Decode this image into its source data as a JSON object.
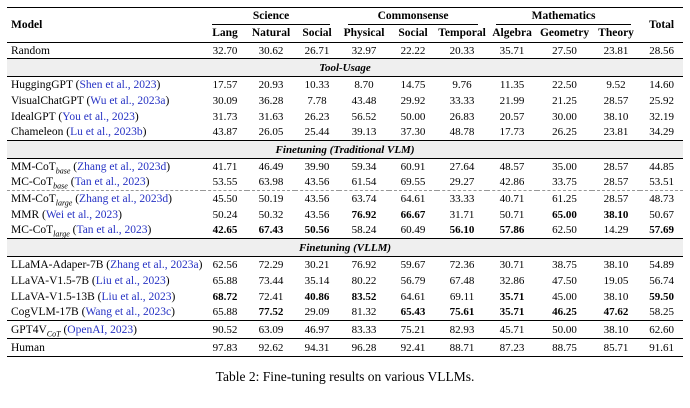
{
  "colors": {
    "citation_link": "#2733c4",
    "section_band_bg": "#efefef"
  },
  "caption": "Table 2: Fine-tuning results on various VLLMs.",
  "table": {
    "header": {
      "model_label": "Model",
      "total_label": "Total",
      "groups": [
        {
          "label": "Science",
          "cols": [
            "Lang",
            "Natural",
            "Social"
          ]
        },
        {
          "label": "Commonsense",
          "cols": [
            "Physical",
            "Social",
            "Temporal"
          ]
        },
        {
          "label": "Mathematics",
          "cols": [
            "Algebra",
            "Geometry",
            "Theory"
          ]
        }
      ]
    },
    "sections": [
      {
        "kind": "rows",
        "rows": [
          {
            "model": "Random",
            "sub": "",
            "cite": "",
            "values": [
              "32.70",
              "30.62",
              "26.71",
              "32.97",
              "22.22",
              "20.33",
              "35.71",
              "27.50",
              "23.81",
              "28.56"
            ],
            "bold": [
              0,
              0,
              0,
              0,
              0,
              0,
              0,
              0,
              0,
              0
            ]
          }
        ]
      },
      {
        "kind": "band",
        "label": "Tool-Usage"
      },
      {
        "kind": "rows",
        "rows": [
          {
            "model": "HuggingGPT",
            "sub": "",
            "cite": "Shen et al., 2023",
            "values": [
              "17.57",
              "20.93",
              "10.33",
              "8.70",
              "14.75",
              "9.76",
              "11.35",
              "22.50",
              "9.52",
              "14.60"
            ],
            "bold": [
              0,
              0,
              0,
              0,
              0,
              0,
              0,
              0,
              0,
              0
            ]
          },
          {
            "model": "VisualChatGPT",
            "sub": "",
            "cite": "Wu et al., 2023a",
            "values": [
              "30.09",
              "36.28",
              "7.78",
              "43.48",
              "29.92",
              "33.33",
              "21.99",
              "21.25",
              "28.57",
              "25.92"
            ],
            "bold": [
              0,
              0,
              0,
              0,
              0,
              0,
              0,
              0,
              0,
              0
            ]
          },
          {
            "model": "IdealGPT",
            "sub": "",
            "cite": "You et al., 2023",
            "values": [
              "31.73",
              "31.63",
              "26.23",
              "56.52",
              "50.00",
              "26.83",
              "20.57",
              "30.00",
              "38.10",
              "32.19"
            ],
            "bold": [
              0,
              0,
              0,
              0,
              0,
              0,
              0,
              0,
              0,
              0
            ]
          },
          {
            "model": "Chameleon",
            "sub": "",
            "cite": "Lu et al., 2023b",
            "values": [
              "43.87",
              "26.05",
              "25.44",
              "39.13",
              "37.30",
              "48.78",
              "17.73",
              "26.25",
              "23.81",
              "34.29"
            ],
            "bold": [
              0,
              0,
              0,
              0,
              0,
              0,
              0,
              0,
              0,
              0
            ]
          }
        ]
      },
      {
        "kind": "band",
        "label": "Finetuning (Traditional VLM)"
      },
      {
        "kind": "rows",
        "rows": [
          {
            "model": "MM-CoT",
            "sub": "base",
            "cite": "Zhang et al., 2023d",
            "values": [
              "41.71",
              "46.49",
              "39.90",
              "59.34",
              "60.91",
              "27.64",
              "48.57",
              "35.00",
              "28.57",
              "44.85"
            ],
            "bold": [
              0,
              0,
              0,
              0,
              0,
              0,
              0,
              0,
              0,
              0
            ]
          },
          {
            "model": "MC-CoT",
            "sub": "base",
            "cite": "Tan et al., 2023",
            "dashed_below": true,
            "values": [
              "53.55",
              "63.98",
              "43.56",
              "61.54",
              "69.55",
              "29.27",
              "42.86",
              "33.75",
              "28.57",
              "53.51"
            ],
            "bold": [
              0,
              0,
              0,
              0,
              0,
              0,
              0,
              0,
              0,
              0
            ]
          },
          {
            "model": "MM-CoT",
            "sub": "large",
            "cite": "Zhang et al., 2023d",
            "values": [
              "45.50",
              "50.19",
              "43.56",
              "63.74",
              "64.61",
              "33.33",
              "40.71",
              "61.25",
              "28.57",
              "48.73"
            ],
            "bold": [
              0,
              0,
              0,
              0,
              0,
              0,
              0,
              0,
              0,
              0
            ]
          },
          {
            "model": "MMR",
            "sub": "",
            "cite": "Wei et al., 2023",
            "values": [
              "50.24",
              "50.32",
              "43.56",
              "76.92",
              "66.67",
              "31.71",
              "50.71",
              "65.00",
              "38.10",
              "50.67"
            ],
            "bold": [
              0,
              0,
              0,
              1,
              1,
              0,
              0,
              1,
              1,
              0
            ]
          },
          {
            "model": "MC-CoT",
            "sub": "large",
            "cite": "Tan et al., 2023",
            "values": [
              "42.65",
              "67.43",
              "50.56",
              "58.24",
              "60.49",
              "56.10",
              "57.86",
              "62.50",
              "14.29",
              "57.69"
            ],
            "bold": [
              1,
              1,
              1,
              0,
              0,
              1,
              1,
              0,
              0,
              1
            ]
          }
        ]
      },
      {
        "kind": "band",
        "label": "Finetuning (VLLM)"
      },
      {
        "kind": "rows",
        "rows": [
          {
            "model": "LLaMA-Adaper-7B",
            "sub": "",
            "cite": "Zhang et al., 2023a",
            "values": [
              "62.56",
              "72.29",
              "30.21",
              "76.92",
              "59.67",
              "72.36",
              "30.71",
              "38.75",
              "38.10",
              "54.89"
            ],
            "bold": [
              0,
              0,
              0,
              0,
              0,
              0,
              0,
              0,
              0,
              0
            ]
          },
          {
            "model": "LLaVA-V1.5-7B",
            "sub": "",
            "cite": "Liu et al., 2023",
            "values": [
              "65.88",
              "73.44",
              "35.14",
              "80.22",
              "56.79",
              "67.48",
              "32.86",
              "47.50",
              "19.05",
              "56.74"
            ],
            "bold": [
              0,
              0,
              0,
              0,
              0,
              0,
              0,
              0,
              0,
              0
            ]
          },
          {
            "model": "LLaVA-V1.5-13B",
            "sub": "",
            "cite": "Liu et al., 2023",
            "values": [
              "68.72",
              "72.41",
              "40.86",
              "83.52",
              "64.61",
              "69.11",
              "35.71",
              "45.00",
              "38.10",
              "59.50"
            ],
            "bold": [
              1,
              0,
              1,
              1,
              0,
              0,
              1,
              0,
              0,
              1
            ]
          },
          {
            "model": "CogVLM-17B",
            "sub": "",
            "cite": "Wang et al., 2023c",
            "values": [
              "65.88",
              "77.52",
              "29.09",
              "81.32",
              "65.43",
              "75.61",
              "35.71",
              "46.25",
              "47.62",
              "58.25"
            ],
            "bold": [
              0,
              1,
              0,
              0,
              1,
              1,
              1,
              1,
              1,
              0
            ]
          }
        ]
      },
      {
        "kind": "rows",
        "rows": [
          {
            "model": "GPT4V",
            "sub": "CoT",
            "cite": "OpenAI, 2023",
            "values": [
              "90.52",
              "63.09",
              "46.97",
              "83.33",
              "75.21",
              "82.93",
              "45.71",
              "50.00",
              "38.10",
              "62.60"
            ],
            "bold": [
              0,
              0,
              0,
              0,
              0,
              0,
              0,
              0,
              0,
              0
            ]
          }
        ]
      },
      {
        "kind": "rows",
        "rows": [
          {
            "model": "Human",
            "sub": "",
            "cite": "",
            "values": [
              "97.83",
              "92.62",
              "94.31",
              "96.28",
              "92.41",
              "88.71",
              "87.23",
              "88.75",
              "85.71",
              "91.61"
            ],
            "bold": [
              0,
              0,
              0,
              0,
              0,
              0,
              0,
              0,
              0,
              0
            ]
          }
        ]
      }
    ]
  }
}
